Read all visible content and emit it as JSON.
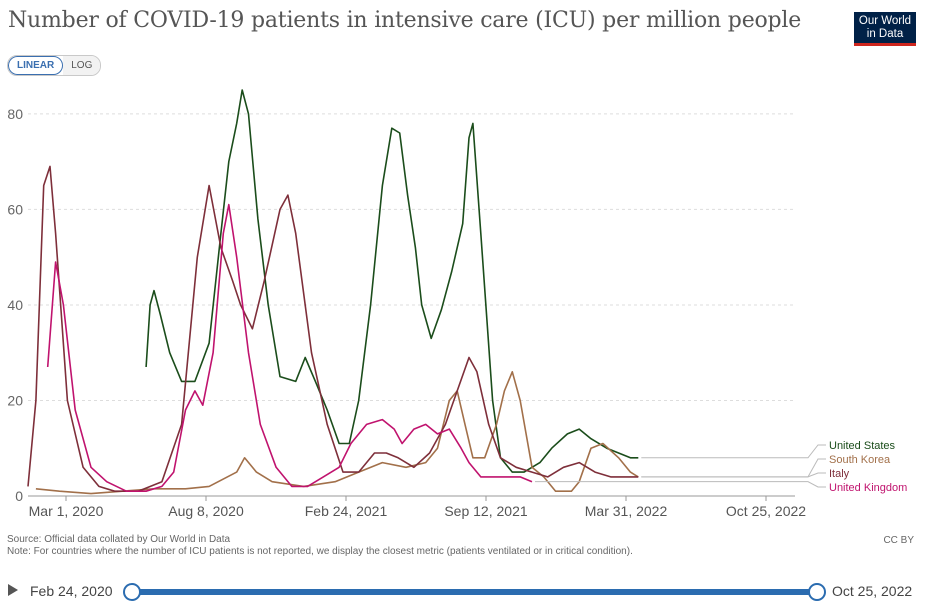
{
  "title": "Number of COVID-19 patients in intensive care (ICU) per million people",
  "logo": {
    "line1": "Our World",
    "line2": "in Data"
  },
  "scale_toggle": {
    "linear": "LINEAR",
    "log": "LOG"
  },
  "source": "Source: Official data collated by Our World in Data",
  "note": "Note: For countries where the number of ICU patients is not reported, we display the closest metric (patients ventilated or in critical condition).",
  "license": "CC BY",
  "timeline": {
    "start": "Feb 24, 2020",
    "end": "Oct 25, 2022"
  },
  "chart_data": {
    "type": "line",
    "title": "Number of COVID-19 patients in intensive care (ICU) per million people",
    "x_ticks": [
      "Mar 1, 2020",
      "Aug 8, 2020",
      "Feb 24, 2021",
      "Sep 12, 2021",
      "Mar 31, 2022",
      "Oct 25, 2022"
    ],
    "x_unit": "days since Feb 24, 2020",
    "x_range": [
      0,
      974
    ],
    "ylim": [
      0,
      85
    ],
    "y_ticks": [
      0,
      20,
      40,
      60,
      80
    ],
    "grid": "horizontal dashed",
    "legend": "right, at line ends",
    "series": [
      {
        "name": "United States",
        "color": "#1b4d1b",
        "points": [
          [
            150,
            27
          ],
          [
            155,
            40
          ],
          [
            160,
            43
          ],
          [
            168,
            38
          ],
          [
            180,
            30
          ],
          [
            195,
            24
          ],
          [
            212,
            24
          ],
          [
            230,
            32
          ],
          [
            245,
            55
          ],
          [
            255,
            70
          ],
          [
            265,
            78
          ],
          [
            272,
            85
          ],
          [
            280,
            80
          ],
          [
            292,
            58
          ],
          [
            305,
            40
          ],
          [
            320,
            25
          ],
          [
            340,
            24
          ],
          [
            352,
            29
          ],
          [
            365,
            24
          ],
          [
            380,
            18
          ],
          [
            395,
            11
          ],
          [
            408,
            11
          ],
          [
            420,
            20
          ],
          [
            435,
            40
          ],
          [
            450,
            65
          ],
          [
            462,
            77
          ],
          [
            472,
            76
          ],
          [
            482,
            63
          ],
          [
            492,
            52
          ],
          [
            500,
            40
          ],
          [
            512,
            33
          ],
          [
            525,
            39
          ],
          [
            538,
            47
          ],
          [
            552,
            57
          ],
          [
            560,
            75
          ],
          [
            565,
            78
          ],
          [
            575,
            55
          ],
          [
            590,
            20
          ],
          [
            600,
            8
          ],
          [
            615,
            5
          ],
          [
            630,
            5
          ],
          [
            650,
            7
          ],
          [
            665,
            10
          ],
          [
            685,
            13
          ],
          [
            700,
            14
          ],
          [
            715,
            12
          ],
          [
            735,
            10
          ],
          [
            750,
            9
          ],
          [
            765,
            8
          ],
          [
            775,
            8
          ]
        ]
      },
      {
        "name": "South Korea",
        "color": "#a2704a",
        "points": [
          [
            10,
            1.5
          ],
          [
            40,
            1
          ],
          [
            80,
            0.5
          ],
          [
            120,
            1
          ],
          [
            160,
            1.5
          ],
          [
            200,
            1.5
          ],
          [
            230,
            2
          ],
          [
            265,
            5
          ],
          [
            275,
            8
          ],
          [
            290,
            5
          ],
          [
            310,
            3
          ],
          [
            350,
            2
          ],
          [
            390,
            3
          ],
          [
            420,
            5
          ],
          [
            450,
            7
          ],
          [
            480,
            6
          ],
          [
            505,
            7
          ],
          [
            520,
            10
          ],
          [
            535,
            20
          ],
          [
            545,
            22
          ],
          [
            555,
            15
          ],
          [
            565,
            8
          ],
          [
            580,
            8
          ],
          [
            595,
            15
          ],
          [
            605,
            22
          ],
          [
            615,
            26
          ],
          [
            625,
            20
          ],
          [
            640,
            6
          ],
          [
            655,
            4
          ],
          [
            670,
            1
          ],
          [
            690,
            1
          ],
          [
            700,
            3
          ],
          [
            715,
            10
          ],
          [
            730,
            11
          ],
          [
            750,
            8
          ],
          [
            765,
            5
          ],
          [
            775,
            4
          ]
        ]
      },
      {
        "name": "Italy",
        "color": "#7e2f3a",
        "points": [
          [
            0,
            2
          ],
          [
            10,
            20
          ],
          [
            20,
            65
          ],
          [
            28,
            69
          ],
          [
            35,
            55
          ],
          [
            50,
            20
          ],
          [
            70,
            6
          ],
          [
            90,
            2
          ],
          [
            110,
            1
          ],
          [
            140,
            1
          ],
          [
            170,
            3
          ],
          [
            195,
            15
          ],
          [
            215,
            50
          ],
          [
            230,
            65
          ],
          [
            245,
            52
          ],
          [
            260,
            45
          ],
          [
            270,
            40
          ],
          [
            285,
            35
          ],
          [
            300,
            45
          ],
          [
            320,
            60
          ],
          [
            330,
            63
          ],
          [
            340,
            55
          ],
          [
            360,
            30
          ],
          [
            380,
            15
          ],
          [
            400,
            5
          ],
          [
            420,
            5
          ],
          [
            440,
            9
          ],
          [
            455,
            9
          ],
          [
            470,
            8
          ],
          [
            490,
            6
          ],
          [
            510,
            9
          ],
          [
            530,
            15
          ],
          [
            545,
            22
          ],
          [
            560,
            29
          ],
          [
            570,
            26
          ],
          [
            585,
            15
          ],
          [
            600,
            8
          ],
          [
            620,
            6
          ],
          [
            640,
            5
          ],
          [
            660,
            4
          ],
          [
            680,
            6
          ],
          [
            700,
            7
          ],
          [
            720,
            5
          ],
          [
            740,
            4
          ],
          [
            760,
            4
          ],
          [
            775,
            4
          ]
        ]
      },
      {
        "name": "United Kingdom",
        "color": "#c0136e",
        "points": [
          [
            25,
            27
          ],
          [
            35,
            49
          ],
          [
            45,
            40
          ],
          [
            60,
            18
          ],
          [
            80,
            6
          ],
          [
            100,
            3
          ],
          [
            125,
            1
          ],
          [
            150,
            1
          ],
          [
            170,
            2
          ],
          [
            185,
            5
          ],
          [
            200,
            18
          ],
          [
            212,
            22
          ],
          [
            222,
            19
          ],
          [
            235,
            30
          ],
          [
            248,
            55
          ],
          [
            255,
            61
          ],
          [
            265,
            50
          ],
          [
            280,
            30
          ],
          [
            295,
            15
          ],
          [
            315,
            6
          ],
          [
            335,
            2
          ],
          [
            355,
            2
          ],
          [
            375,
            4
          ],
          [
            395,
            6
          ],
          [
            410,
            11
          ],
          [
            430,
            15
          ],
          [
            450,
            16
          ],
          [
            465,
            14
          ],
          [
            475,
            11
          ],
          [
            490,
            14
          ],
          [
            505,
            15
          ],
          [
            520,
            13
          ],
          [
            535,
            14
          ],
          [
            550,
            10
          ],
          [
            560,
            7
          ],
          [
            575,
            4
          ],
          [
            595,
            4
          ],
          [
            610,
            4
          ],
          [
            625,
            4
          ],
          [
            640,
            3
          ]
        ]
      }
    ]
  }
}
